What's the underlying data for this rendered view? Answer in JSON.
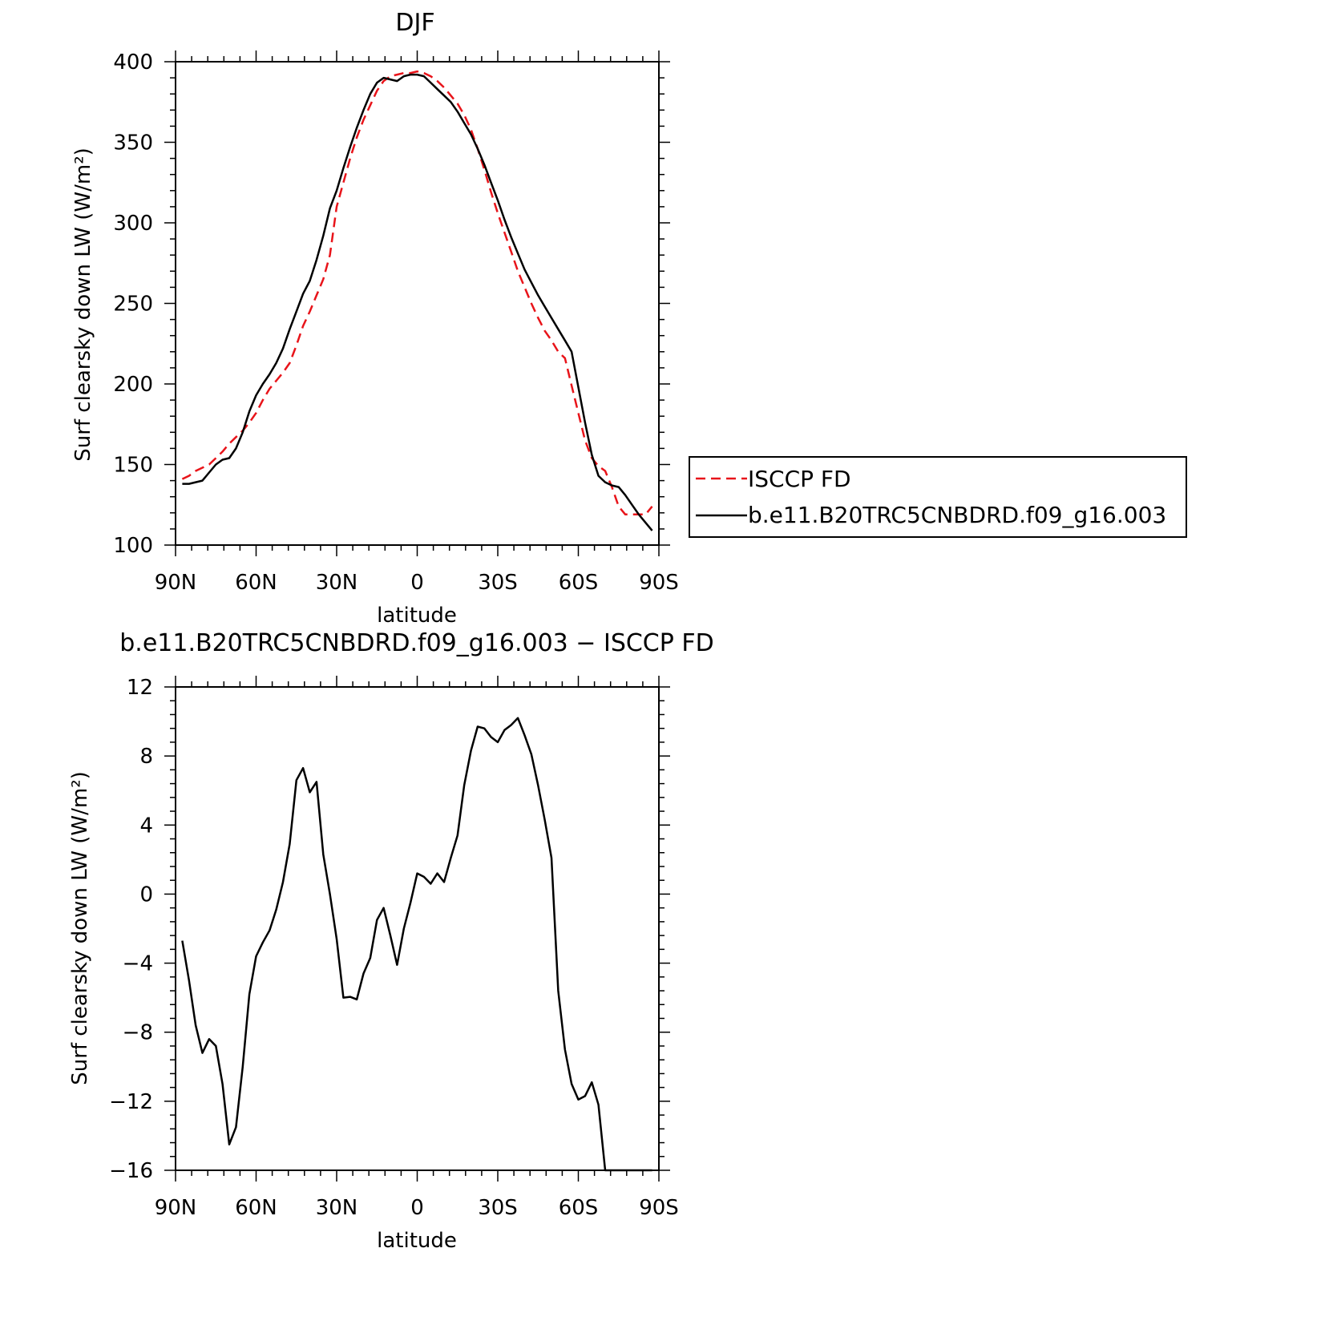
{
  "colors": {
    "obs": "#e8141a",
    "model": "#000000"
  },
  "chart_data": [
    {
      "type": "line",
      "title": "DJF",
      "xlabel": "latitude",
      "ylabel": "Surf clearsky down LW (W/m²)",
      "xlim": [
        90,
        -90
      ],
      "ylim": [
        100,
        400
      ],
      "yticks": [
        "100",
        "150",
        "200",
        "250",
        "300",
        "350",
        "400"
      ],
      "xticks": [
        "90N",
        "60N",
        "30N",
        "0",
        "30S",
        "60S",
        "90S"
      ],
      "legend_position": "right",
      "series": [
        {
          "name": "ISCCP FD",
          "style": "dashed",
          "x": [
            87.5,
            85,
            82.5,
            80,
            77.5,
            75,
            72.5,
            70,
            67.5,
            65,
            62.5,
            60,
            57.5,
            55,
            52.5,
            50,
            47.5,
            45,
            42.5,
            40,
            37.5,
            35,
            32.5,
            30,
            27.5,
            25,
            22.5,
            20,
            17.5,
            15,
            12.5,
            10,
            7.5,
            5,
            2.5,
            0,
            -2.5,
            -5,
            -7.5,
            -10,
            -12.5,
            -15,
            -17.5,
            -20,
            -22.5,
            -25,
            -27.5,
            -30,
            -32.5,
            -35,
            -37.5,
            -40,
            -42.5,
            -45,
            -47.5,
            -50,
            -52.5,
            -55,
            -57.5,
            -60,
            -62.5,
            -65,
            -67.5,
            -70,
            -72.5,
            -75,
            -77.5,
            -80,
            -82.5,
            -85,
            -87.5
          ],
          "values": [
            141,
            143,
            146,
            148,
            150,
            154,
            158,
            163,
            167,
            171,
            176,
            182,
            190,
            197,
            202,
            207,
            213,
            224,
            236,
            245,
            255,
            265,
            280,
            310,
            325,
            340,
            353,
            364,
            373,
            382,
            388,
            391,
            392,
            393,
            393,
            394,
            393,
            391,
            388,
            384,
            379,
            374,
            367,
            358,
            346,
            333,
            319,
            306,
            294,
            282,
            270,
            260,
            250,
            241,
            233,
            227,
            220,
            216,
            199,
            182,
            165,
            154,
            149,
            146,
            136,
            124,
            119,
            119,
            119,
            119,
            124
          ]
        },
        {
          "name": "b.e11.B20TRC5CNBDRD.f09_g16.003",
          "style": "solid",
          "x": [
            87.5,
            85,
            82.5,
            80,
            77.5,
            75,
            72.5,
            70,
            67.5,
            65,
            62.5,
            60,
            57.5,
            55,
            52.5,
            50,
            47.5,
            45,
            42.5,
            40,
            37.5,
            35,
            32.5,
            30,
            27.5,
            25,
            22.5,
            20,
            17.5,
            15,
            12.5,
            10,
            7.5,
            5,
            2.5,
            0,
            -2.5,
            -5,
            -7.5,
            -10,
            -12.5,
            -15,
            -17.5,
            -20,
            -22.5,
            -25,
            -27.5,
            -30,
            -32.5,
            -35,
            -37.5,
            -40,
            -42.5,
            -45,
            -47.5,
            -50,
            -52.5,
            -55,
            -57.5,
            -60,
            -62.5,
            -65,
            -67.5,
            -70,
            -72.5,
            -75,
            -77.5,
            -80,
            -82.5,
            -85,
            -87.5
          ],
          "values": [
            138,
            138,
            139,
            140,
            145,
            150,
            153,
            154,
            160,
            170,
            183,
            193,
            200,
            206,
            213,
            222,
            234,
            245,
            256,
            264,
            277,
            292,
            309,
            320,
            334,
            347,
            359,
            370,
            380,
            387,
            390,
            389,
            388,
            391,
            392,
            392,
            391,
            387,
            383,
            379,
            375,
            369,
            362,
            355,
            346,
            336,
            325,
            314,
            302,
            291,
            281,
            271,
            263,
            255,
            248,
            241,
            234,
            227,
            220,
            198,
            176,
            156,
            143,
            139,
            137,
            136,
            131,
            125,
            119,
            114,
            109
          ]
        }
      ]
    },
    {
      "type": "line",
      "title": "b.e11.B20TRC5CNBDRD.f09_g16.003 − ISCCP FD",
      "xlabel": "latitude",
      "ylabel": "Surf clearsky down LW (W/m²)",
      "xlim": [
        90,
        -90
      ],
      "ylim": [
        -16,
        12
      ],
      "yticks": [
        "12",
        "8",
        "4",
        "0",
        "−4",
        "−8",
        "−12",
        "−16"
      ],
      "xticks": [
        "90N",
        "60N",
        "30N",
        "0",
        "30S",
        "60S",
        "90S"
      ],
      "series": [
        {
          "style": "solid",
          "x": [
            87.5,
            85,
            82.5,
            80,
            77.5,
            75,
            72.5,
            70,
            67.5,
            65,
            62.5,
            60,
            57.5,
            55,
            52.5,
            50,
            47.5,
            45,
            42.5,
            40,
            37.5,
            35,
            32.5,
            30,
            27.5,
            25,
            22.5,
            20,
            17.5,
            15,
            12.5,
            10,
            7.5,
            5,
            2.5,
            0,
            -2.5,
            -5,
            -7.5,
            -10,
            -12.5,
            -15,
            -17.5,
            -20,
            -22.5,
            -25,
            -27.5,
            -30,
            -32.5,
            -35,
            -37.5,
            -40,
            -42.5,
            -45,
            -47.5,
            -50,
            -52.5,
            -55,
            -57.5,
            -60,
            -62.5,
            -65,
            -67.5,
            -70,
            -72.5,
            -75,
            -77.5,
            -80,
            -82.5,
            -85,
            -87.5
          ],
          "values": [
            -2.7,
            -5,
            -7.6,
            -9.2,
            -8.4,
            -8.8,
            -11,
            -14.5,
            -13.5,
            -10,
            -5.8,
            -3.6,
            -2.8,
            -2.1,
            -0.9,
            0.7,
            2.9,
            6.6,
            7.3,
            5.9,
            6.5,
            2.3,
            0,
            -2.6,
            -6,
            -5.95,
            -6.1,
            -4.6,
            -3.7,
            -1.5,
            -0.8,
            -2.4,
            -4.1,
            -2,
            -0.5,
            1.2,
            1,
            0.6,
            1.2,
            0.7,
            2.1,
            3.4,
            6.3,
            8.3,
            9.7,
            9.6,
            9.1,
            8.8,
            9.5,
            9.8,
            10.2,
            9.2,
            8.1,
            6.3,
            4.3,
            2.1,
            -5.6,
            -9,
            -11,
            -11.9,
            -11.7,
            -10.9,
            -12.2,
            -16,
            -16,
            -16,
            -16,
            -16,
            -16,
            -16,
            -16
          ]
        }
      ]
    }
  ]
}
